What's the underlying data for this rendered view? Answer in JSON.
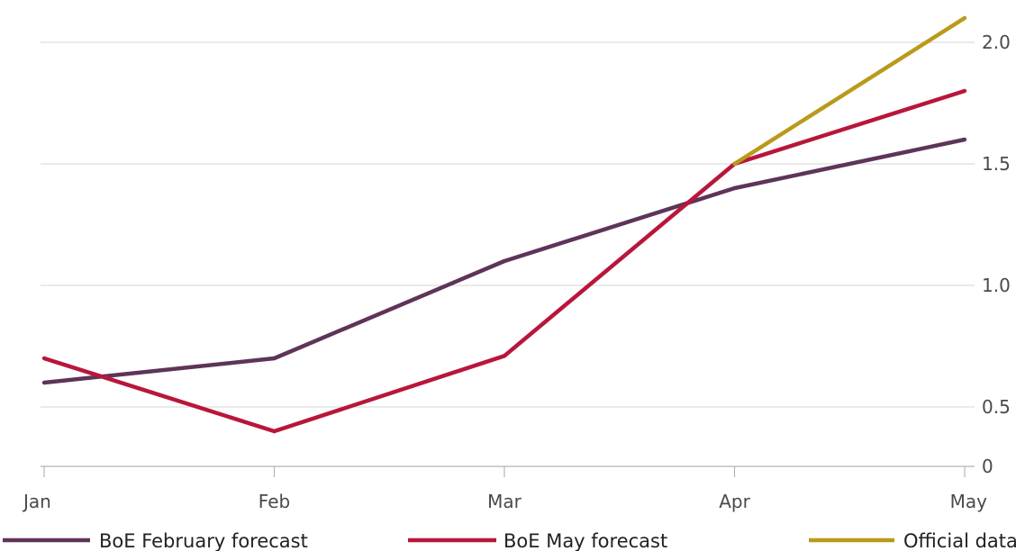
{
  "chart_data": {
    "type": "line",
    "title": "",
    "xlabel": "",
    "ylabel": "",
    "categories": [
      "Jan",
      "Feb",
      "Mar",
      "Apr",
      "May"
    ],
    "y_ticks": [
      0,
      0.5,
      1.0,
      1.5,
      2.0
    ],
    "y_tick_labels": [
      "0",
      "0.5",
      "1.0",
      "1.5",
      "2.0"
    ],
    "ylim": [
      0.25,
      2.1
    ],
    "y_axis_position": "right",
    "grid": true,
    "legend_position": "bottom",
    "series": [
      {
        "name": "BoE February forecast",
        "color": "#5e3459",
        "values": [
          0.6,
          0.7,
          1.1,
          1.4,
          1.6
        ]
      },
      {
        "name": "BoE May forecast",
        "color": "#b8163b",
        "values": [
          0.7,
          0.4,
          0.71,
          1.5,
          1.8
        ]
      },
      {
        "name": "Official data",
        "color": "#b99a1b",
        "values": [
          null,
          null,
          null,
          1.5,
          2.1
        ]
      }
    ]
  }
}
